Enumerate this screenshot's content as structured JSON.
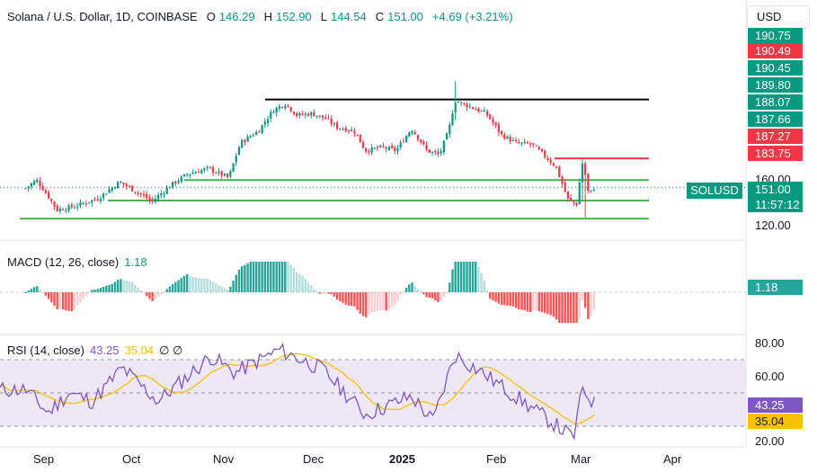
{
  "header": {
    "symbol": "Solana / U.S. Dollar, 1D, COINBASE",
    "open_label": "O",
    "open": "146.29",
    "high_label": "H",
    "high": "152.90",
    "low_label": "L",
    "low": "144.54",
    "close_label": "C",
    "close": "151.00",
    "change": "+4.69 (+3.21%)"
  },
  "currency_button": "USD",
  "price_axis": {
    "ticks": [
      "160.00",
      "120.00"
    ],
    "green_tags": [
      "190.75",
      "190.45",
      "189.80",
      "188.07",
      "187.66"
    ],
    "red_tags": [
      "190.49",
      "187.27",
      "183.75"
    ],
    "symbol_tag": "SOLUSD",
    "last_price": "151.00",
    "countdown": "11:57:12"
  },
  "macd": {
    "label": "MACD (12, 26, close)",
    "value": "1.18",
    "tag": "1.18"
  },
  "rsi": {
    "label": "RSI (14, close)",
    "value": "43.25",
    "ma_value": "35.04",
    "extra": "∅ ∅",
    "ticks": [
      "80.00",
      "60.00",
      "20.00"
    ],
    "tag": "43.25",
    "ma_tag": "35.04"
  },
  "time_axis": [
    "Sep",
    "Oct",
    "Nov",
    "Dec",
    "2025",
    "Feb",
    "Mar",
    "Apr"
  ],
  "colors": {
    "up": "#089981",
    "down": "#f23645",
    "rsi_line": "#7e57c2",
    "rsi_ma": "#f7c200",
    "support": "#4caf50",
    "resistance_top": "#000000",
    "resistance_red": "#f23645",
    "rsi_band": "#ede7f6",
    "macd_up_strong": "#26a69a",
    "macd_up_weak": "#b2dfdb",
    "macd_down_strong": "#ff5252",
    "macd_down_weak": "#ffcdd2"
  },
  "chart_data": {
    "type": "candlestick",
    "title": "Solana / U.S. Dollar, 1D, COINBASE",
    "x_ticks": [
      "Sep",
      "Oct",
      "Nov",
      "Dec",
      "2025",
      "Feb",
      "Mar",
      "Apr"
    ],
    "y_ticks": [
      160,
      120
    ],
    "last_price": 151.0,
    "close_path": [
      {
        "x": "Aug 26",
        "y": 150
      },
      {
        "x": "Aug 30",
        "y": 158
      },
      {
        "x": "Sep 6",
        "y": 131
      },
      {
        "x": "Sep 12",
        "y": 134
      },
      {
        "x": "Sep 20",
        "y": 141
      },
      {
        "x": "Sep 27",
        "y": 156
      },
      {
        "x": "Oct 4",
        "y": 145
      },
      {
        "x": "Oct 8",
        "y": 138
      },
      {
        "x": "Oct 14",
        "y": 152
      },
      {
        "x": "Oct 20",
        "y": 164
      },
      {
        "x": "Oct 27",
        "y": 170
      },
      {
        "x": "Nov 3",
        "y": 160
      },
      {
        "x": "Nov 7",
        "y": 200
      },
      {
        "x": "Nov 13",
        "y": 215
      },
      {
        "x": "Nov 18",
        "y": 245
      },
      {
        "x": "Nov 22",
        "y": 255
      },
      {
        "x": "Nov 26",
        "y": 237
      },
      {
        "x": "Dec 1",
        "y": 240
      },
      {
        "x": "Dec 6",
        "y": 232
      },
      {
        "x": "Dec 10",
        "y": 220
      },
      {
        "x": "Dec 16",
        "y": 215
      },
      {
        "x": "Dec 20",
        "y": 190
      },
      {
        "x": "Dec 26",
        "y": 194
      },
      {
        "x": "Dec 31",
        "y": 190
      },
      {
        "x": "Jan 5",
        "y": 218
      },
      {
        "x": "Jan 10",
        "y": 190
      },
      {
        "x": "Jan 14",
        "y": 185
      },
      {
        "x": "Jan 17",
        "y": 215
      },
      {
        "x": "Jan 19",
        "y": 260
      },
      {
        "x": "Jan 24",
        "y": 250
      },
      {
        "x": "Jan 29",
        "y": 240
      },
      {
        "x": "Feb 3",
        "y": 210
      },
      {
        "x": "Feb 8",
        "y": 199
      },
      {
        "x": "Feb 13",
        "y": 198
      },
      {
        "x": "Feb 17",
        "y": 185
      },
      {
        "x": "Feb 21",
        "y": 172
      },
      {
        "x": "Feb 25",
        "y": 140
      },
      {
        "x": "Feb 28",
        "y": 136
      },
      {
        "x": "Mar 2",
        "y": 178
      },
      {
        "x": "Mar 4",
        "y": 144
      },
      {
        "x": "Mar 6",
        "y": 151
      }
    ],
    "events": [
      {
        "x": "Jan 19",
        "high": 294,
        "low": 230
      },
      {
        "x": "Mar 2",
        "high": 180,
        "low": 140
      },
      {
        "x": "Mar 3",
        "low": 125
      }
    ],
    "levels": {
      "resistance_top": 262,
      "resistance_red": 181,
      "support": [
        158,
        139,
        124
      ]
    },
    "macd": {
      "value": 1.18,
      "histogram_sign_by_period": [
        {
          "x": "Sep",
          "sign": "-"
        },
        {
          "x": "Oct",
          "sign": "+"
        },
        {
          "x": "Nov",
          "sign": "+"
        },
        {
          "x": "Dec",
          "sign": "-"
        },
        {
          "x": "Jan",
          "sign": "+"
        },
        {
          "x": "Feb",
          "sign": "-"
        },
        {
          "x": "Mar",
          "sign": "+"
        }
      ]
    },
    "rsi": {
      "value": 43.25,
      "ma": 35.04,
      "bands": [
        70,
        50,
        30
      ],
      "y_ticks": [
        80,
        60,
        20
      ],
      "path": [
        {
          "x": "Aug 26",
          "y": 52
        },
        {
          "x": "Sep 3",
          "y": 38
        },
        {
          "x": "Sep 10",
          "y": 50
        },
        {
          "x": "Sep 18",
          "y": 45
        },
        {
          "x": "Sep 28",
          "y": 65
        },
        {
          "x": "Oct 10",
          "y": 45
        },
        {
          "x": "Oct 20",
          "y": 60
        },
        {
          "x": "Oct 28",
          "y": 72
        },
        {
          "x": "Nov 5",
          "y": 62
        },
        {
          "x": "Nov 20",
          "y": 76
        },
        {
          "x": "Dec 5",
          "y": 64
        },
        {
          "x": "Dec 20",
          "y": 37
        },
        {
          "x": "Jan 5",
          "y": 48
        },
        {
          "x": "Jan 12",
          "y": 33
        },
        {
          "x": "Jan 19",
          "y": 73
        },
        {
          "x": "Jan 28",
          "y": 62
        },
        {
          "x": "Feb 10",
          "y": 45
        },
        {
          "x": "Feb 27",
          "y": 23
        },
        {
          "x": "Mar 2",
          "y": 53
        },
        {
          "x": "Mar 6",
          "y": 43
        }
      ]
    }
  }
}
